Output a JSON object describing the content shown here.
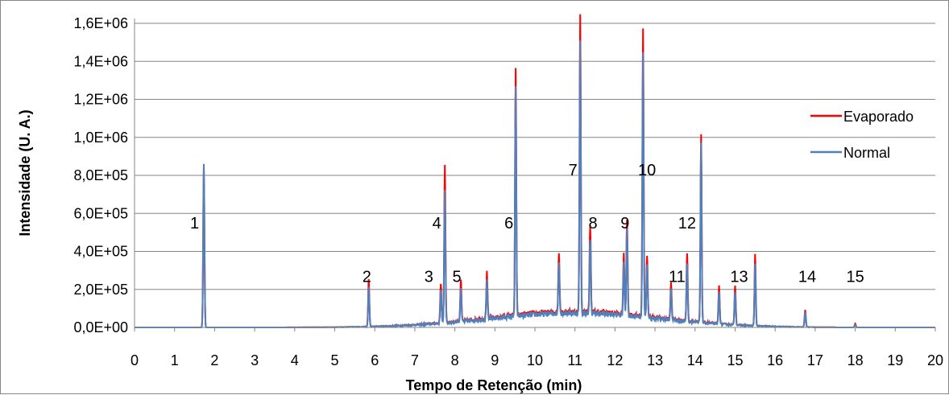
{
  "chart_data": {
    "type": "line",
    "xlabel": "Tempo de Retenção (min)",
    "ylabel": "Intensidade (U. A.)",
    "xlim": [
      0,
      20
    ],
    "ylim": [
      0,
      1600000
    ],
    "x_ticks": [
      "0",
      "1",
      "2",
      "3",
      "4",
      "5",
      "6",
      "7",
      "8",
      "9",
      "10",
      "11",
      "12",
      "13",
      "14",
      "15",
      "16",
      "17",
      "18",
      "19",
      "20"
    ],
    "y_ticks": [
      "0,0E+00",
      "2,0E+05",
      "4,0E+05",
      "6,0E+05",
      "8,0E+05",
      "1,0E+06",
      "1,2E+06",
      "1,4E+06",
      "1,6E+06"
    ],
    "grid": "horizontal",
    "legend_position": "right",
    "series": [
      {
        "name": "Evaporado",
        "color": "#ff0000",
        "peaks": [
          [
            1.73,
            850000
          ],
          [
            5.85,
            250000
          ],
          [
            7.65,
            210000
          ],
          [
            7.75,
            830000
          ],
          [
            8.15,
            220000
          ],
          [
            8.8,
            240000
          ],
          [
            9.52,
            1290000
          ],
          [
            10.6,
            320000
          ],
          [
            11.13,
            1570000
          ],
          [
            11.38,
            470000
          ],
          [
            12.22,
            310000
          ],
          [
            12.3,
            510000
          ],
          [
            12.7,
            1520000
          ],
          [
            12.8,
            320000
          ],
          [
            13.4,
            190000
          ],
          [
            13.8,
            360000
          ],
          [
            14.15,
            990000
          ],
          [
            14.6,
            200000
          ],
          [
            15.0,
            210000
          ],
          [
            15.5,
            380000
          ],
          [
            16.75,
            90000
          ],
          [
            18.0,
            20000
          ]
        ]
      },
      {
        "name": "Normal",
        "color": "#4f81bd",
        "peaks": [
          [
            1.73,
            860000
          ],
          [
            5.85,
            210000
          ],
          [
            7.65,
            180000
          ],
          [
            7.75,
            700000
          ],
          [
            8.15,
            180000
          ],
          [
            8.8,
            200000
          ],
          [
            9.52,
            1200000
          ],
          [
            10.6,
            280000
          ],
          [
            11.13,
            1440000
          ],
          [
            11.38,
            400000
          ],
          [
            12.22,
            270000
          ],
          [
            12.3,
            470000
          ],
          [
            12.7,
            1400000
          ],
          [
            12.8,
            280000
          ],
          [
            13.4,
            160000
          ],
          [
            13.8,
            310000
          ],
          [
            14.15,
            950000
          ],
          [
            14.6,
            170000
          ],
          [
            15.0,
            180000
          ],
          [
            15.5,
            330000
          ],
          [
            16.75,
            80000
          ],
          [
            18.0,
            15000
          ]
        ]
      }
    ],
    "peak_labels": [
      {
        "text": "1",
        "x": 1.5,
        "y": 520000
      },
      {
        "text": "2",
        "x": 5.8,
        "y": 240000
      },
      {
        "text": "3",
        "x": 7.35,
        "y": 240000
      },
      {
        "text": "4",
        "x": 7.55,
        "y": 520000
      },
      {
        "text": "5",
        "x": 8.05,
        "y": 240000
      },
      {
        "text": "6",
        "x": 9.35,
        "y": 520000
      },
      {
        "text": "7",
        "x": 10.95,
        "y": 800000
      },
      {
        "text": "8",
        "x": 11.45,
        "y": 520000
      },
      {
        "text": "9",
        "x": 12.25,
        "y": 520000
      },
      {
        "text": "10",
        "x": 12.8,
        "y": 800000
      },
      {
        "text": "11",
        "x": 13.55,
        "y": 240000
      },
      {
        "text": "12",
        "x": 13.8,
        "y": 520000
      },
      {
        "text": "13",
        "x": 15.1,
        "y": 240000
      },
      {
        "text": "14",
        "x": 16.8,
        "y": 240000
      },
      {
        "text": "15",
        "x": 18.0,
        "y": 240000
      }
    ]
  }
}
